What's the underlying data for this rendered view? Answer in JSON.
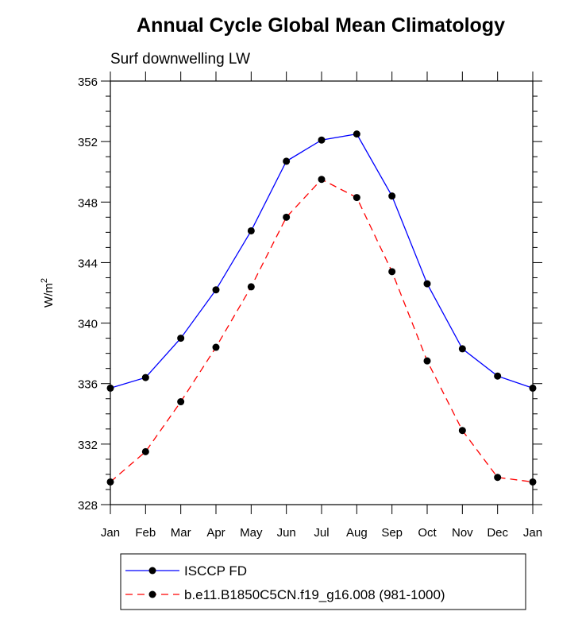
{
  "chart_data": {
    "type": "line",
    "title": "Annual Cycle Global Mean Climatology",
    "subtitle": "Surf downwelling LW",
    "xlabel": "",
    "ylabel": "W/m",
    "ylabel_superscript": "2",
    "categories": [
      "Jan",
      "Feb",
      "Mar",
      "Apr",
      "May",
      "Jun",
      "Jul",
      "Aug",
      "Sep",
      "Oct",
      "Nov",
      "Dec",
      "Jan"
    ],
    "ylim": [
      328,
      356
    ],
    "yticks": [
      328,
      332,
      336,
      340,
      344,
      348,
      352,
      356
    ],
    "grid": false,
    "legend_position": "bottom",
    "series": [
      {
        "name": "ISCCP FD",
        "color": "#0000ff",
        "dashed": false,
        "values": [
          335.7,
          336.4,
          339.0,
          342.2,
          346.1,
          350.7,
          352.1,
          352.5,
          348.4,
          342.6,
          338.3,
          336.5,
          335.7
        ]
      },
      {
        "name": "b.e11.B1850C5CN.f19_g16.008 (981-1000)",
        "color": "#ff0000",
        "dashed": true,
        "values": [
          329.5,
          331.5,
          334.8,
          338.4,
          342.4,
          347.0,
          349.5,
          348.3,
          343.4,
          337.5,
          332.9,
          329.8,
          329.5
        ]
      }
    ]
  }
}
